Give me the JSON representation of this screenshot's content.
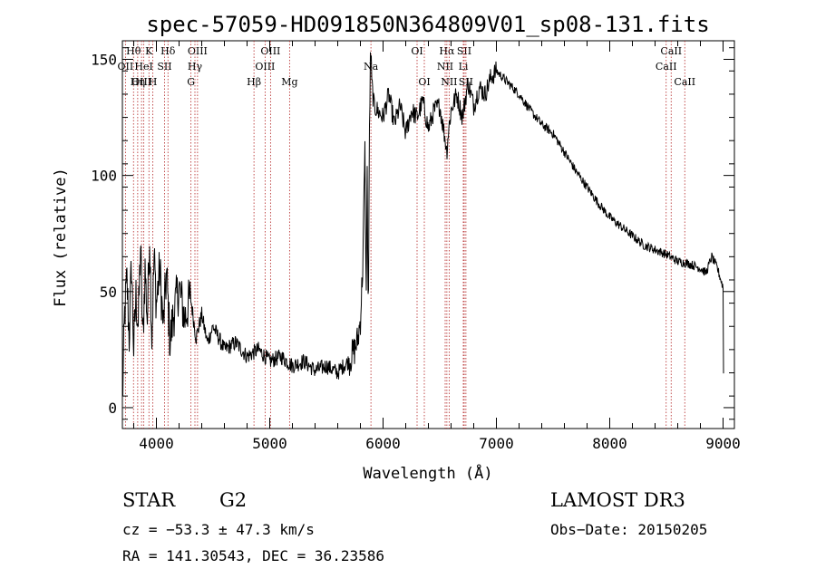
{
  "chart_data": {
    "type": "line",
    "title": "spec-57059-HD091850N364809V01_sp08-131.fits",
    "xlabel": "Wavelength (Å)",
    "ylabel": "Flux (relative)",
    "xlim": [
      3700,
      9100
    ],
    "ylim": [
      -9,
      158
    ],
    "xticks": [
      4000,
      5000,
      6000,
      7000,
      8000,
      9000
    ],
    "yticks": [
      0,
      50,
      100,
      150
    ],
    "series": [
      {
        "name": "flux",
        "x": [
          3700,
          3720,
          3740,
          3760,
          3780,
          3800,
          3820,
          3840,
          3860,
          3880,
          3900,
          3920,
          3940,
          3960,
          3980,
          4000,
          4030,
          4060,
          4090,
          4120,
          4150,
          4200,
          4250,
          4300,
          4350,
          4400,
          4450,
          4500,
          4600,
          4700,
          4800,
          4900,
          5000,
          5100,
          5200,
          5300,
          5400,
          5500,
          5600,
          5650,
          5700,
          5750,
          5780,
          5800,
          5820,
          5840,
          5850,
          5860,
          5870,
          5880,
          5890,
          5900,
          5920,
          5950,
          6000,
          6050,
          6100,
          6150,
          6200,
          6250,
          6300,
          6350,
          6400,
          6450,
          6500,
          6550,
          6562,
          6575,
          6600,
          6650,
          6700,
          6750,
          6800,
          6850,
          6900,
          6950,
          7000,
          7100,
          7200,
          7300,
          7400,
          7500,
          7600,
          7700,
          7800,
          7900,
          8000,
          8100,
          8200,
          8300,
          8400,
          8500,
          8600,
          8700,
          8800,
          8850,
          8900,
          8950,
          8980,
          9000,
          9005
        ],
        "y": [
          2,
          40,
          55,
          30,
          62,
          25,
          48,
          35,
          70,
          28,
          60,
          38,
          75,
          30,
          65,
          45,
          60,
          35,
          58,
          28,
          40,
          52,
          38,
          48,
          30,
          40,
          28,
          35,
          25,
          28,
          22,
          25,
          20,
          22,
          18,
          20,
          16,
          18,
          15,
          18,
          20,
          25,
          30,
          38,
          60,
          110,
          45,
          100,
          35,
          120,
          155,
          140,
          130,
          128,
          125,
          135,
          122,
          130,
          118,
          128,
          125,
          132,
          120,
          128,
          130,
          115,
          110,
          118,
          128,
          135,
          125,
          140,
          130,
          138,
          135,
          142,
          145,
          140,
          135,
          128,
          122,
          118,
          110,
          102,
          95,
          88,
          82,
          78,
          74,
          70,
          68,
          66,
          63,
          62,
          60,
          58,
          65,
          60,
          55,
          52,
          5
        ],
        "mode": "noisy"
      }
    ],
    "spectral_lines": [
      {
        "label": "Hθ",
        "x": 3798,
        "row": 0
      },
      {
        "label": "OII",
        "x": 3727,
        "row": 1
      },
      {
        "label": "OIII",
        "x": 3869,
        "row": 2
      },
      {
        "label": "K",
        "x": 3934,
        "row": 0
      },
      {
        "label": "HeI",
        "x": 3889,
        "row": 1
      },
      {
        "label": "Hη",
        "x": 3835,
        "row": 2
      },
      {
        "label": "H",
        "x": 3968,
        "row": 2
      },
      {
        "label": "Hδ",
        "x": 4102,
        "row": 0
      },
      {
        "label": "SII",
        "x": 4072,
        "row": 1
      },
      {
        "label": "OIII",
        "x": 4363,
        "row": 0
      },
      {
        "label": "Hγ",
        "x": 4340,
        "row": 1
      },
      {
        "label": "G",
        "x": 4305,
        "row": 2
      },
      {
        "label": "OIII",
        "x": 5007,
        "row": 0
      },
      {
        "label": "OIII",
        "x": 4959,
        "row": 1
      },
      {
        "label": "Hβ",
        "x": 4861,
        "row": 2
      },
      {
        "label": "Mg",
        "x": 5175,
        "row": 2
      },
      {
        "label": "Na",
        "x": 5893,
        "row": 1
      },
      {
        "label": "OI",
        "x": 6300,
        "row": 0
      },
      {
        "label": "OI",
        "x": 6364,
        "row": 2
      },
      {
        "label": "Hα",
        "x": 6563,
        "row": 0
      },
      {
        "label": "NII",
        "x": 6548,
        "row": 1
      },
      {
        "label": "NII",
        "x": 6583,
        "row": 2
      },
      {
        "label": "SII",
        "x": 6716,
        "row": 0
      },
      {
        "label": "Li",
        "x": 6708,
        "row": 1
      },
      {
        "label": "SII",
        "x": 6731,
        "row": 2
      },
      {
        "label": "CaII",
        "x": 8542,
        "row": 0
      },
      {
        "label": "CaII",
        "x": 8498,
        "row": 1
      },
      {
        "label": "CaII",
        "x": 8662,
        "row": 2
      }
    ]
  },
  "info": {
    "class_label": "STAR",
    "subclass": "G2",
    "survey": "LAMOST DR3",
    "cz": "cz = −53.3 ± 47.3 km/s",
    "obs_date": "Obs−Date: 20150205",
    "coords": "RA = 141.30543, DEC =  36.23586"
  }
}
